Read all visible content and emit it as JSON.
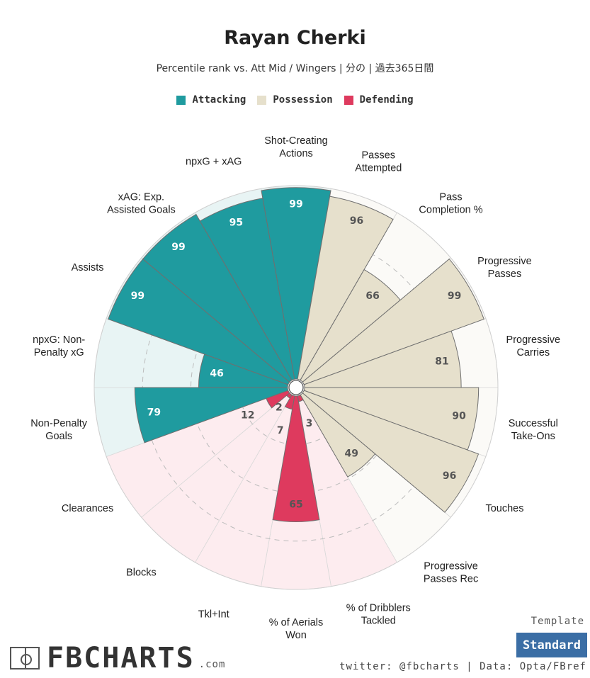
{
  "page": {
    "title": "Rayan Cherki",
    "subtitle": "Percentile rank vs. Att Mid / Wingers | 分の | 過去365日間"
  },
  "legend": [
    {
      "label": "Attacking",
      "color": "#1f9b9f"
    },
    {
      "label": "Possession",
      "color": "#e6e0cc"
    },
    {
      "label": "Defending",
      "color": "#de3a5e"
    }
  ],
  "chart_data": {
    "type": "radar-bar",
    "title": "Rayan Cherki",
    "range": [
      0,
      100
    ],
    "categories": [
      {
        "key": "Attacking",
        "color": "#1f9b9f",
        "background": "#e8f4f4",
        "text_color": "#ffffff"
      },
      {
        "key": "Possession",
        "color": "#e6e0cc",
        "background": "#fbfaf7",
        "text_color": "#555555"
      },
      {
        "key": "Defending",
        "color": "#de3a5e",
        "background": "#fdecef",
        "text_color": "#555555"
      }
    ],
    "metrics": [
      {
        "label": "Shot-Creating\nActions",
        "value": 99,
        "category": "Attacking"
      },
      {
        "label": "Passes\nAttempted",
        "value": 96,
        "category": "Possession"
      },
      {
        "label": "Pass\nCompletion %",
        "value": 66,
        "category": "Possession"
      },
      {
        "label": "Progressive\nPasses",
        "value": 99,
        "category": "Possession"
      },
      {
        "label": "Progressive\nCarries",
        "value": 81,
        "category": "Possession"
      },
      {
        "label": "Successful\nTake-Ons",
        "value": 90,
        "category": "Possession"
      },
      {
        "label": "Touches",
        "value": 96,
        "category": "Possession"
      },
      {
        "label": "Progressive\nPasses Rec",
        "value": 49,
        "category": "Possession"
      },
      {
        "label": "% of Dribblers\nTackled",
        "value": 3,
        "category": "Defending"
      },
      {
        "label": "% of Aerials\nWon",
        "value": 65,
        "category": "Defending"
      },
      {
        "label": "Tkl+Int",
        "value": 7,
        "category": "Defending"
      },
      {
        "label": "Blocks",
        "value": 2,
        "category": "Defending"
      },
      {
        "label": "Clearances",
        "value": 12,
        "category": "Defending"
      },
      {
        "label": "Non-Penalty\nGoals",
        "value": 79,
        "category": "Attacking"
      },
      {
        "label": "npxG: Non-\nPenalty xG",
        "value": 46,
        "category": "Attacking"
      },
      {
        "label": "Assists",
        "value": 99,
        "category": "Attacking"
      },
      {
        "label": "xAG: Exp.\nAssisted Goals",
        "value": 99,
        "category": "Attacking"
      },
      {
        "label": "npxG + xAG",
        "value": 95,
        "category": "Attacking"
      }
    ]
  },
  "footer": {
    "brand": "FBCHARTS",
    "brand_suffix": ".com",
    "template_label": "Template",
    "template_value": "Standard",
    "credits": "twitter: @fbcharts | Data: Opta/FBref"
  }
}
